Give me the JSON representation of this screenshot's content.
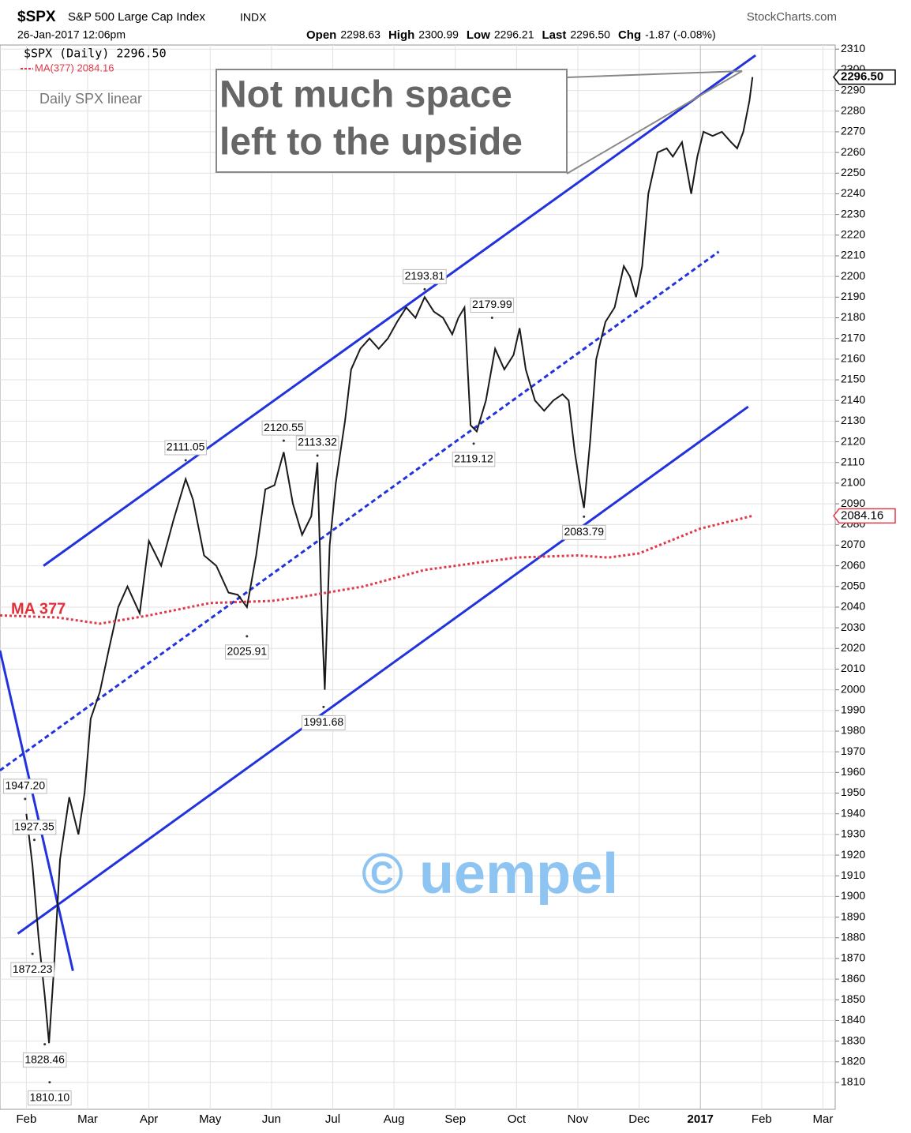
{
  "chart_data": {
    "type": "line",
    "header": {
      "symbol": "$SPX",
      "name": "S&P 500 Large Cap Index",
      "exchange": "INDX",
      "source": "StockCharts.com",
      "timestamp": "26-Jan-2017 12:06pm",
      "quote": [
        {
          "label": "Open",
          "value": "2298.63"
        },
        {
          "label": "High",
          "value": "2300.99"
        },
        {
          "label": "Low",
          "value": "2296.21"
        },
        {
          "label": "Last",
          "value": "2296.50"
        },
        {
          "label": "Chg",
          "value": "-1.87 (-0.08%)"
        }
      ]
    },
    "subtitle": "Daily SPX linear",
    "annotation_box": [
      "Not much space",
      "left to the upside"
    ],
    "ma_label": "MA 377",
    "watermark": "© uempel",
    "xlim": [
      -0.43,
      13.2
    ],
    "xticks": [
      {
        "value": 0,
        "label": "Feb"
      },
      {
        "value": 1,
        "label": "Mar"
      },
      {
        "value": 2,
        "label": "Apr"
      },
      {
        "value": 3,
        "label": "May"
      },
      {
        "value": 4,
        "label": "Jun"
      },
      {
        "value": 5,
        "label": "Jul"
      },
      {
        "value": 6,
        "label": "Aug"
      },
      {
        "value": 7,
        "label": "Sep"
      },
      {
        "value": 8,
        "label": "Oct"
      },
      {
        "value": 9,
        "label": "Nov"
      },
      {
        "value": 10,
        "label": "Dec"
      },
      {
        "value": 11,
        "label": "2017"
      },
      {
        "value": 12,
        "label": "Feb"
      },
      {
        "value": 13,
        "label": "Mar"
      }
    ],
    "ylim": [
      1797,
      2312
    ],
    "yticks": [
      1810,
      1820,
      1830,
      1840,
      1850,
      1860,
      1870,
      1880,
      1890,
      1900,
      1910,
      1920,
      1930,
      1940,
      1950,
      1960,
      1970,
      1980,
      1990,
      2000,
      2010,
      2020,
      2030,
      2040,
      2050,
      2060,
      2070,
      2080,
      2090,
      2100,
      2110,
      2120,
      2130,
      2140,
      2150,
      2160,
      2170,
      2180,
      2190,
      2200,
      2210,
      2220,
      2230,
      2240,
      2250,
      2260,
      2270,
      2280,
      2290,
      2300,
      2310
    ],
    "grid": true,
    "series": [
      {
        "name": "$SPX (Daily) 2296.50",
        "color": "#1a1a1a",
        "dash": false,
        "x": [
          0,
          0.1,
          0.2,
          0.3,
          0.37,
          0.45,
          0.55,
          0.7,
          0.85,
          0.95,
          1.05,
          1.2,
          1.35,
          1.5,
          1.65,
          1.85,
          2,
          2.2,
          2.4,
          2.6,
          2.72,
          2.9,
          3.1,
          3.3,
          3.45,
          3.6,
          3.75,
          3.9,
          4.05,
          4.2,
          4.35,
          4.5,
          4.65,
          4.75,
          4.82,
          4.87,
          4.95,
          5.05,
          5.2,
          5.3,
          5.45,
          5.6,
          5.75,
          5.9,
          6.05,
          6.2,
          6.35,
          6.5,
          6.65,
          6.8,
          6.95,
          7.05,
          7.15,
          7.25,
          7.35,
          7.5,
          7.65,
          7.8,
          7.95,
          8.05,
          8.15,
          8.3,
          8.45,
          8.6,
          8.75,
          8.85,
          8.95,
          9.05,
          9.1,
          9.2,
          9.3,
          9.45,
          9.6,
          9.75,
          9.85,
          9.95,
          10.05,
          10.15,
          10.3,
          10.45,
          10.55,
          10.7,
          10.85,
          10.95,
          11.05,
          11.2,
          11.35,
          11.5,
          11.6,
          11.7,
          11.8,
          11.85
        ],
        "values": [
          1940,
          1915,
          1880,
          1852,
          1829,
          1865,
          1918,
          1948,
          1930,
          1950,
          1986,
          1999,
          2020,
          2040,
          2050,
          2037,
          2072,
          2060,
          2082,
          2102,
          2092,
          2065,
          2060,
          2047,
          2046,
          2040,
          2065,
          2097,
          2099,
          2115,
          2090,
          2075,
          2084,
          2110,
          2037,
          2000,
          2070,
          2100,
          2130,
          2155,
          2165,
          2170,
          2165,
          2170,
          2178,
          2185,
          2180,
          2190,
          2183,
          2180,
          2172,
          2180,
          2185,
          2128,
          2125,
          2140,
          2165,
          2155,
          2162,
          2175,
          2155,
          2140,
          2135,
          2140,
          2143,
          2140,
          2115,
          2096,
          2088,
          2120,
          2160,
          2178,
          2185,
          2205,
          2200,
          2190,
          2205,
          2240,
          2260,
          2262,
          2258,
          2265,
          2240,
          2258,
          2270,
          2268,
          2270,
          2265,
          2262,
          2270,
          2285,
          2296.5
        ]
      },
      {
        "name": "MA(377) 2084.16",
        "color": "#e03a4a",
        "dash": true,
        "x": [
          -0.43,
          0.5,
          1.2,
          2,
          3,
          4,
          4.5,
          5.5,
          6.5,
          7,
          8,
          9,
          9.5,
          10,
          10.5,
          11,
          11.85
        ],
        "values": [
          2036,
          2035,
          2032,
          2036,
          2042,
          2043,
          2045,
          2050,
          2058,
          2060,
          2064,
          2065,
          2064,
          2066,
          2072,
          2078,
          2084.16
        ]
      }
    ],
    "trendlines": [
      {
        "x": [
          0.28,
          11.9
        ],
        "values": [
          2060,
          2307
        ],
        "color": "#2233dd",
        "dash": false
      },
      {
        "x": [
          -0.14,
          11.78
        ],
        "values": [
          1882,
          2137
        ],
        "color": "#2233dd",
        "dash": false
      },
      {
        "x": [
          -0.43,
          11.3
        ],
        "values": [
          1961,
          2212
        ],
        "color": "#2233dd",
        "dash": true
      },
      {
        "x": [
          -0.43,
          0.76
        ],
        "values": [
          2019,
          1864
        ],
        "color": "#2233dd",
        "dash": false
      }
    ],
    "point_labels": [
      {
        "x": 2.6,
        "value": 2111.05,
        "label": "2111.05"
      },
      {
        "x": 4.2,
        "value": 2120.55,
        "label": "2120.55"
      },
      {
        "x": 4.75,
        "value": 2113.32,
        "label": "2113.32"
      },
      {
        "x": 3.6,
        "value": 2025.91,
        "label": "2025.91"
      },
      {
        "x": 4.85,
        "value": 1991.68,
        "label": "1991.68"
      },
      {
        "x": 6.5,
        "value": 2193.81,
        "label": "2193.81"
      },
      {
        "x": 7.6,
        "value": 2179.99,
        "label": "2179.99"
      },
      {
        "x": 7.3,
        "value": 2119.12,
        "label": "2119.12"
      },
      {
        "x": 9.1,
        "value": 2083.79,
        "label": "2083.79"
      },
      {
        "x": -0.02,
        "value": 1947.2,
        "label": "1947.20"
      },
      {
        "x": 0.13,
        "value": 1927.35,
        "label": "1927.35"
      },
      {
        "x": 0.1,
        "value": 1872.23,
        "label": "1872.23"
      },
      {
        "x": 0.3,
        "value": 1828.46,
        "label": "1828.46"
      },
      {
        "x": 0.38,
        "value": 1810.1,
        "label": "1810.10"
      }
    ],
    "price_tags": [
      {
        "value": 2296.5,
        "label": "2296.50",
        "color": "#000000"
      },
      {
        "value": 2084.16,
        "label": "2084.16",
        "color": "#e03a4a"
      }
    ]
  }
}
